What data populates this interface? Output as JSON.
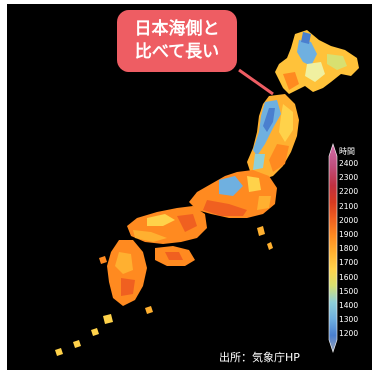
{
  "callout": {
    "line1": "日本海側と",
    "line2": "比べて長い"
  },
  "legend": {
    "title": "時間",
    "ticks": [
      "2400",
      "2300",
      "2200",
      "2100",
      "2000",
      "1900",
      "1800",
      "1700",
      "1600",
      "1500",
      "1400",
      "1300",
      "1200"
    ]
  },
  "source": "出所：気象庁HP",
  "colors": {
    "background": "#000000",
    "callout": "#ee5d63",
    "scale": [
      "#9aa4b8",
      "#4a7fcf",
      "#6fb0e0",
      "#8fd0d8",
      "#d8e070",
      "#ffd24a",
      "#ffb030",
      "#ff8a20",
      "#f06020",
      "#d83a20",
      "#c03040",
      "#c05080",
      "#d070a8"
    ]
  }
}
